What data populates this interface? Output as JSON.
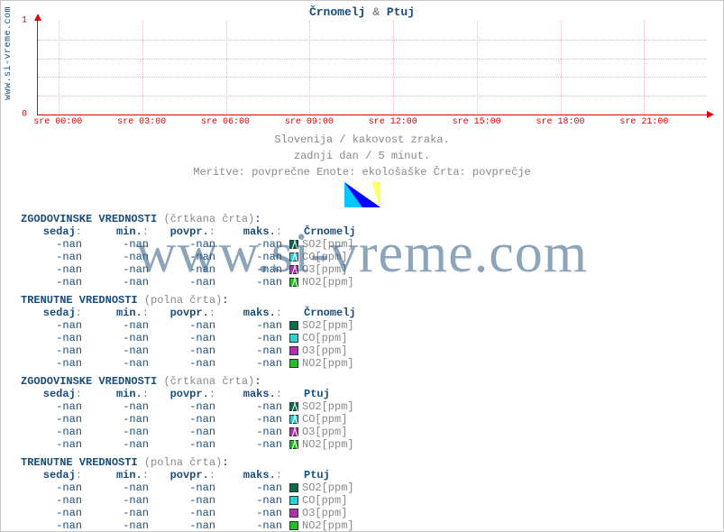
{
  "title": {
    "city1": "Črnomelj",
    "amp": "&",
    "city2": "Ptuj"
  },
  "side_url": "www.si-vreme.com",
  "watermark": "www.si-vreme.com",
  "chart": {
    "type": "line",
    "ylim": [
      0,
      1
    ],
    "yticks": [
      0,
      1
    ],
    "xticks": [
      "sre 00:00",
      "sre 03:00",
      "sre 06:00",
      "sre 09:00",
      "sre 12:00",
      "sre 15:00",
      "sre 18:00",
      "sre 21:00"
    ],
    "axis_color": "#e00000",
    "grid_color": "#f3b0b0",
    "background_color": "#ffffff",
    "h_grid_count": 6,
    "label_fontsize": 10
  },
  "subtitles": {
    "line1": "Slovenija / kakovost zraka.",
    "line2": "zadnji dan / 5 minut.",
    "line3": "Meritve: povprečne  Enote: ekološaške  Črta: povprečje"
  },
  "columns": {
    "sedaj": "sedaj",
    "min": "min.",
    "povpr": "povpr.",
    "maks": "maks."
  },
  "locations": [
    "Črnomelj",
    "Ptuj"
  ],
  "section_labels": {
    "hist": "ZGODOVINSKE VREDNOSTI",
    "hist_paren": "(črtkana črta)",
    "curr": "TRENUTNE VREDNOSTI",
    "curr_paren": "(polna črta)"
  },
  "measures": [
    {
      "label": "SO2[ppm]",
      "color": "#0a6b4f"
    },
    {
      "label": "CO[ppm]",
      "color": "#2fd0d8"
    },
    {
      "label": "O3[ppm]",
      "color": "#b030b0"
    },
    {
      "label": "NO2[ppm]",
      "color": "#20c020"
    }
  ],
  "cell_value": "-nan",
  "sections": [
    {
      "kind": "hist",
      "loc_index": 0
    },
    {
      "kind": "curr",
      "loc_index": 0
    },
    {
      "kind": "hist",
      "loc_index": 1
    },
    {
      "kind": "curr",
      "loc_index": 1
    }
  ]
}
